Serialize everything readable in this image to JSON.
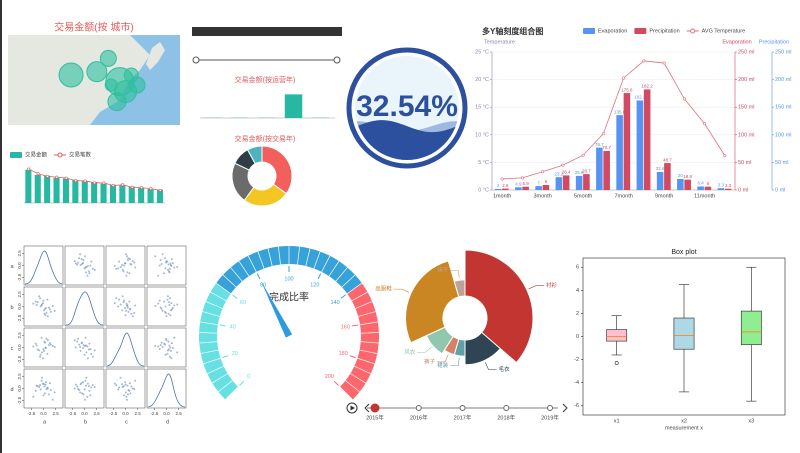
{
  "chart_data": [
    {
      "type": "bubble",
      "title": "交易金额(按 城市)",
      "x": [
        97,
        106,
        110,
        114,
        116,
        113,
        118,
        120,
        111
      ],
      "y": [
        33,
        34,
        38,
        31,
        28,
        25,
        33,
        30,
        30
      ],
      "values": [
        12,
        10,
        8,
        14,
        11,
        9,
        7,
        8,
        6
      ],
      "xlim": [
        75,
        135
      ],
      "ylim": [
        18,
        45
      ],
      "color": "#2fbf9f"
    },
    {
      "type": "bar",
      "legend": "top-left",
      "categories": [
        null,
        null,
        null,
        null,
        null,
        null,
        null,
        null,
        null,
        null,
        null,
        null,
        null,
        null,
        null
      ],
      "series": [
        {
          "name": "交易金额",
          "color": "#26b8a0",
          "values": [
            95,
            80,
            78,
            72,
            70,
            66,
            62,
            60,
            55,
            52,
            50,
            47,
            43,
            40,
            38
          ]
        },
        {
          "name": "交易笔数",
          "color": "#e8595b",
          "type": "line",
          "values": [
            97,
            84,
            76,
            74,
            71,
            64,
            63,
            58,
            57,
            50,
            52,
            45,
            44,
            41,
            36
          ]
        }
      ],
      "ylim": [
        0,
        100
      ]
    },
    {
      "type": "bar",
      "title": "交易金额(按运营年)",
      "categories": [
        null,
        null,
        null,
        null,
        null
      ],
      "values": [
        1,
        1,
        1,
        100,
        1
      ],
      "color": "#26b8a0",
      "ylim": [
        0,
        110
      ]
    },
    {
      "type": "pie",
      "title": "交易金额(按交易年)",
      "values": [
        35,
        25,
        22,
        10,
        8
      ],
      "colors": [
        "#f25f5c",
        "#f3c623",
        "#6b6b6b",
        "#2f3e46",
        "#4fb3bf"
      ]
    },
    {
      "type": "liquid",
      "values": [
        32.54
      ],
      "value_labels": [
        "32.54%"
      ],
      "color": "#2c4f9e"
    },
    {
      "type": "bar",
      "title": "多Y轴刻度组合图",
      "legend": "top-right",
      "show_values": true,
      "categories": [
        "1month",
        null,
        "3month",
        null,
        "5month",
        null,
        "7month",
        null,
        "9month",
        null,
        "11month",
        null
      ],
      "series": [
        {
          "name": "Evaporation",
          "color": "#5793f3",
          "axis": "y2",
          "values": [
            2.0,
            4.9,
            7.0,
            23.2,
            25.6,
            76.7,
            135.6,
            162.2,
            32.6,
            20.0,
            6.4,
            3.3
          ]
        },
        {
          "name": "Precipitation",
          "color": "#d14a61",
          "axis": "y3",
          "values": [
            2.6,
            5.9,
            9.0,
            26.4,
            28.7,
            70.7,
            175.6,
            182.2,
            48.7,
            18.8,
            6.0,
            2.3
          ]
        },
        {
          "name": "AVG Temperature",
          "color": "#e0707e",
          "type": "line",
          "axis": "y",
          "values": [
            2.0,
            2.2,
            3.3,
            4.5,
            6.3,
            10.2,
            20.3,
            23.4,
            23.0,
            16.5,
            12.0,
            6.2
          ]
        }
      ],
      "y_label": "Temperature",
      "ylim": [
        0,
        25
      ],
      "yticks": [
        {
          "value": 0,
          "label": "0 °C"
        },
        {
          "value": 5,
          "label": "5 °C"
        },
        {
          "value": 10,
          "label": "10 °C"
        },
        {
          "value": 15,
          "label": "15 °C"
        },
        {
          "value": 20,
          "label": "20 °C"
        },
        {
          "value": 25,
          "label": "25 °C"
        }
      ],
      "y_color": "#8f7fb8",
      "y2_label": "Evaporation",
      "y2lim": [
        0,
        250
      ],
      "y2ticks": [
        {
          "value": 0,
          "label": "0 ml"
        },
        {
          "value": 50,
          "label": "50 ml"
        },
        {
          "value": 100,
          "label": "100 ml"
        },
        {
          "value": 150,
          "label": "150 ml"
        },
        {
          "value": 200,
          "label": "200 ml"
        },
        {
          "value": 250,
          "label": "250 ml"
        }
      ],
      "y2_color": "#d14a61",
      "y3_label": "Precipitation",
      "y3lim": [
        0,
        250
      ],
      "y3ticks": [
        {
          "value": 0,
          "label": "0 ml"
        },
        {
          "value": 50,
          "label": "50 ml"
        },
        {
          "value": 100,
          "label": "100 ml"
        },
        {
          "value": 150,
          "label": "150 ml"
        },
        {
          "value": 200,
          "label": "200 ml"
        },
        {
          "value": 250,
          "label": "250 ml"
        }
      ],
      "y3_color": "#5793f3",
      "grid": true
    },
    {
      "type": "scatter-matrix",
      "color": "#4c72b0",
      "xlim": [
        -3.8,
        3.8
      ],
      "xticks": [
        -2.5,
        {
          "value": 0,
          "label": "0.0"
        },
        2.5
      ],
      "series": [
        {
          "name": "a",
          "values": [
            0.3,
            -1.2,
            0.8,
            1.5,
            -0.4,
            0.1,
            -2.1,
            0.9,
            -0.7,
            1.9,
            0.5,
            -1.6,
            0.2,
            -0.1,
            1.1,
            -0.9,
            2.3,
            -0.3,
            0.6,
            -1.4,
            0.0,
            1.3,
            -0.6,
            0.4
          ]
        },
        {
          "name": "b",
          "values": [
            -0.5,
            0.9,
            1.4,
            -1.1,
            0.2,
            -0.8,
            0.6,
            -2.0,
            1.7,
            0.1,
            -0.3,
            1.0,
            -1.5,
            0.7,
            -0.2,
            2.1,
            -0.9,
            0.4,
            -1.3,
            0.3,
            1.2,
            -0.6,
            0.0,
            -1.8
          ]
        },
        {
          "name": "c",
          "values": [
            1.0,
            -0.4,
            -1.3,
            0.6,
            2.0,
            -0.7,
            0.2,
            1.5,
            -1.9,
            0.3,
            -0.1,
            0.8,
            1.2,
            -2.2,
            0.5,
            -0.6,
            0.1,
            -1.0,
            1.8,
            0.4,
            -0.3,
            0.9,
            -1.5,
            0.0
          ]
        },
        {
          "name": "d",
          "values": [
            -1.0,
            0.5,
            0.2,
            -0.3,
            1.6,
            0.9,
            -1.7,
            0.0,
            0.7,
            -2.3,
            1.3,
            -0.5,
            0.4,
            1.0,
            -1.2,
            0.3,
            -0.8,
            2.2,
            -0.1,
            0.6,
            -1.4,
            1.1,
            -0.2,
            0.8
          ]
        }
      ]
    },
    {
      "type": "gauge",
      "title": "完成比率",
      "values": [
        80
      ],
      "ylim": [
        0,
        200
      ],
      "yticks": [
        0,
        20,
        40,
        60,
        80,
        100,
        120,
        140,
        160,
        180,
        200
      ],
      "bands": [
        {
          "to": 60,
          "color": "#67e0e3"
        },
        {
          "to": 140,
          "color": "#37a2da"
        },
        {
          "to": 200,
          "color": "#fd666d"
        }
      ]
    },
    {
      "type": "pie",
      "rose": true,
      "categories": [
        "衬衫",
        "毛衣",
        "裙装",
        "裤子",
        "风衣",
        "高跟鞋",
        "袜子"
      ],
      "values": [
        40,
        15,
        5,
        5,
        10,
        30,
        5
      ],
      "colors": [
        "#c23531",
        "#2f4554",
        "#61a0a8",
        "#d48265",
        "#91c7ae",
        "#ca8622",
        "#bda29a"
      ],
      "timeline": [
        "2015年",
        "2016年",
        "2017年",
        "2018年",
        "2019年"
      ]
    },
    {
      "type": "box",
      "title": "Box plot",
      "x_label": "measurement x",
      "categories": [
        "x1",
        "x2",
        "x3"
      ],
      "min": [
        -1.6,
        -4.8,
        -5.6
      ],
      "q1": [
        -0.4,
        -1.1,
        -0.7
      ],
      "median": [
        0.0,
        0.1,
        0.4
      ],
      "q3": [
        0.6,
        1.6,
        2.2
      ],
      "max": [
        1.8,
        4.5,
        6.0
      ],
      "outliers": [
        [
          -2.3
        ],
        [],
        []
      ],
      "ylim": [
        -6.8,
        6.8
      ],
      "yticks": [
        -6,
        -4,
        -2,
        0,
        2,
        4,
        6
      ],
      "colors": [
        "#ffc0cb",
        "#add8e6",
        "#90ee90"
      ],
      "median_color": "#ff7f0e"
    }
  ]
}
